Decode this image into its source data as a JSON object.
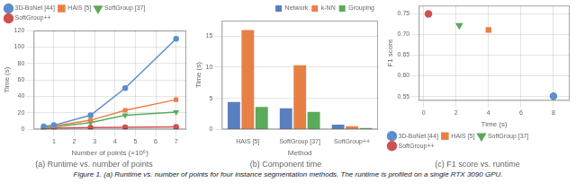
{
  "chart_data": [
    {
      "type": "line",
      "subtitle": "(a) Runtime vs. number of points",
      "xlabel": "Number of points (×10⁶)",
      "ylabel": "Time (s)",
      "x": [
        0.5,
        1.0,
        2.8,
        4.5,
        7.0
      ],
      "series": [
        {
          "name": "3D-BoNet [44]",
          "color": "#5b8fc9",
          "marker": "circle",
          "values": [
            3.5,
            5.0,
            17.0,
            50.0,
            110.0
          ]
        },
        {
          "name": "HAIS [5]",
          "color": "#e88046",
          "marker": "square",
          "values": [
            2.0,
            4.0,
            11.0,
            23.0,
            36.0
          ]
        },
        {
          "name": "SoftGroup [37]",
          "color": "#5caa5c",
          "marker": "triangle_down",
          "values": [
            1.5,
            3.0,
            8.0,
            17.0,
            21.0
          ]
        },
        {
          "name": "SoftGroup++",
          "color": "#d05050",
          "marker": "circle",
          "values": [
            1.0,
            1.5,
            2.0,
            2.5,
            3.0
          ]
        }
      ],
      "xlim": [
        0,
        7.5
      ],
      "xticks": [
        1,
        2,
        3,
        4,
        5,
        6,
        7
      ],
      "ylim": [
        0,
        120
      ],
      "yticks": [
        0,
        20,
        40,
        60,
        80,
        100,
        120
      ],
      "grid": true,
      "legend": "upper left"
    },
    {
      "type": "bar",
      "subtitle": "(b) Component time",
      "xlabel": "Method",
      "ylabel": "Time (s)",
      "categories": [
        "HAIS [5]",
        "SoftGroup [37]",
        "SoftGroup++"
      ],
      "series": [
        {
          "name": "Network",
          "color": "#5b7fbe",
          "values": [
            4.4,
            3.4,
            0.75
          ]
        },
        {
          "name": "k-NN",
          "color": "#e88046",
          "values": [
            16.0,
            10.3,
            0.5
          ]
        },
        {
          "name": "Grouping",
          "color": "#5caa5c",
          "values": [
            3.6,
            2.8,
            0.2
          ]
        }
      ],
      "ylim": [
        0,
        17.5
      ],
      "yticks": [
        0,
        5,
        10,
        15
      ],
      "grid": "y",
      "legend": "upper right"
    },
    {
      "type": "scatter",
      "subtitle": "(c) F1 score vs. runtime",
      "xlabel": "Time (s)",
      "ylabel": "F1 score",
      "series": [
        {
          "name": "3D-BoNet [44]",
          "color": "#5b8fc9",
          "marker": "circle",
          "x": [
            8.0
          ],
          "values": [
            0.551
          ]
        },
        {
          "name": "HAIS [5]",
          "color": "#e88046",
          "marker": "square",
          "x": [
            4.0
          ],
          "values": [
            0.711
          ]
        },
        {
          "name": "SoftGroup [37]",
          "color": "#5caa5c",
          "marker": "triangle_down",
          "x": [
            2.2
          ],
          "values": [
            0.722
          ]
        },
        {
          "name": "SoftGroup++",
          "color": "#d05050",
          "marker": "circle",
          "x": [
            0.3
          ],
          "values": [
            0.75
          ]
        }
      ],
      "xlim": [
        -0.3,
        9.0
      ],
      "xticks": [
        0,
        2,
        4,
        6,
        8
      ],
      "ylim": [
        0.54,
        0.77
      ],
      "yticks": [
        0.55,
        {
          "value": 0.6,
          "label": "0.60"
        },
        0.65,
        {
          "value": 0.7,
          "label": "0.70"
        },
        0.75
      ],
      "grid": true,
      "legend": "lower left"
    }
  ],
  "caption": "Figure 1. (a) Runtime vs. number of points for four instance segmentation methods. The runtime is profiled on a single RTX 3090 GPU."
}
